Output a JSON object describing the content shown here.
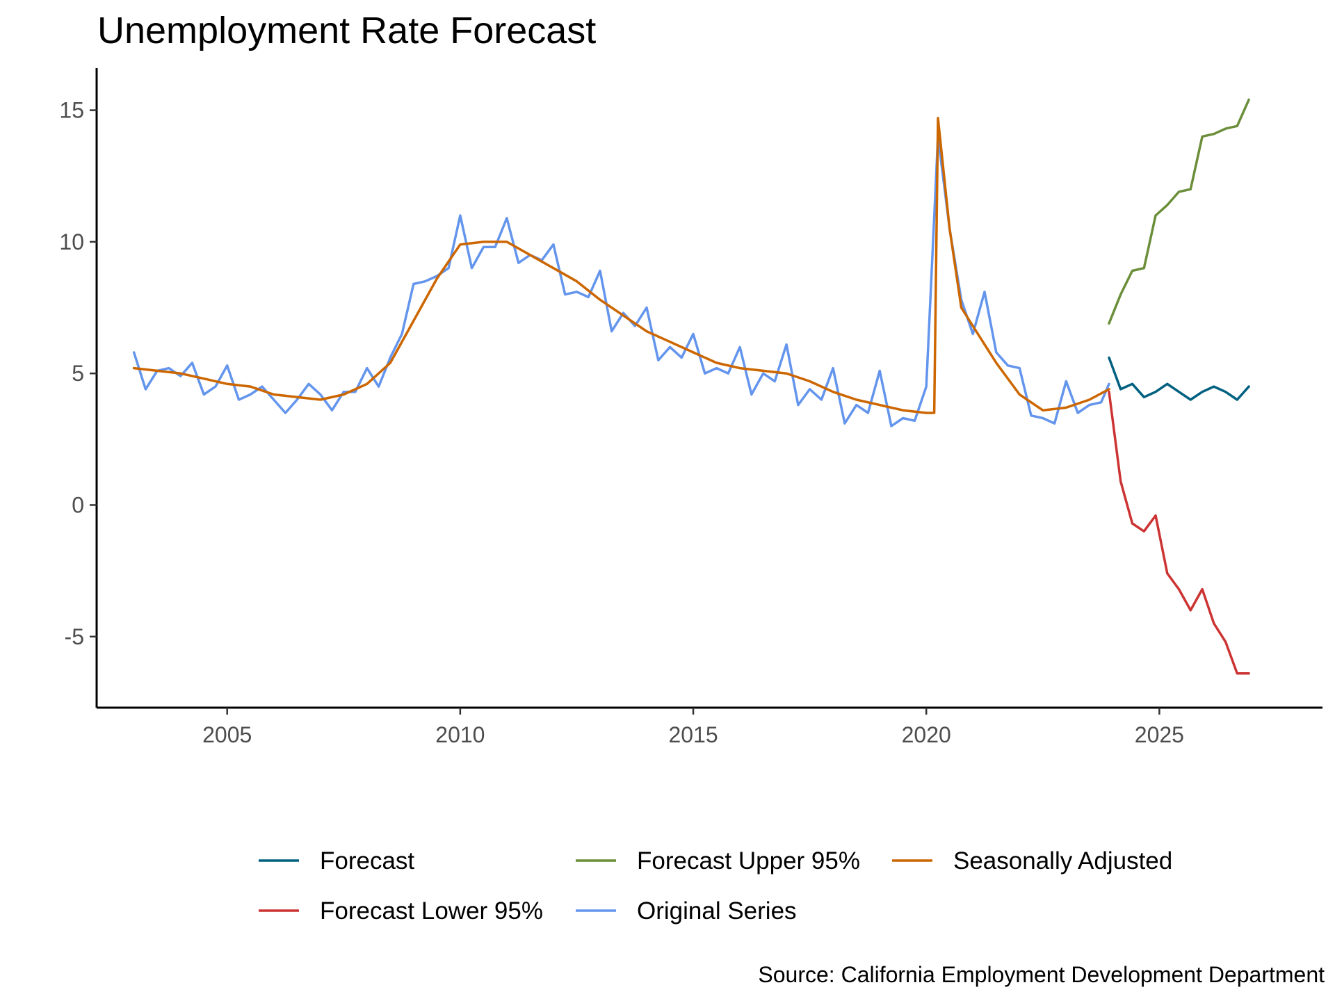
{
  "chart_data": {
    "type": "line",
    "title": "Unemployment Rate Forecast",
    "caption": "Source: California Employment Development Department",
    "xlabel": "",
    "ylabel": "",
    "xlim": [
      2002.2,
      2028.5
    ],
    "ylim": [
      -7.7,
      16.6
    ],
    "x_ticks": [
      2005,
      2010,
      2015,
      2020,
      2025
    ],
    "x_tick_labels": [
      "2005",
      "2010",
      "2015",
      "2020",
      "2025"
    ],
    "y_ticks": [
      15,
      10,
      5,
      0,
      -5
    ],
    "y_tick_labels": [
      "15",
      "10",
      "5",
      "0",
      "-5"
    ],
    "grid": false,
    "legend_position": "bottom",
    "legend": [
      "Forecast",
      "Forecast Lower 95%",
      "Forecast Upper 95%",
      "Original Series",
      "Seasonally Adjusted"
    ],
    "series": [
      {
        "name": "Original Series",
        "color": "#6495ed",
        "x": [
          2003.0,
          2003.25,
          2003.5,
          2003.75,
          2004.0,
          2004.25,
          2004.5,
          2004.75,
          2005.0,
          2005.25,
          2005.5,
          2005.75,
          2006.0,
          2006.25,
          2006.5,
          2006.75,
          2007.0,
          2007.25,
          2007.5,
          2007.75,
          2008.0,
          2008.25,
          2008.5,
          2008.75,
          2009.0,
          2009.25,
          2009.5,
          2009.75,
          2010.0,
          2010.25,
          2010.5,
          2010.75,
          2011.0,
          2011.25,
          2011.5,
          2011.75,
          2012.0,
          2012.25,
          2012.5,
          2012.75,
          2013.0,
          2013.25,
          2013.5,
          2013.75,
          2014.0,
          2014.25,
          2014.5,
          2014.75,
          2015.0,
          2015.25,
          2015.5,
          2015.75,
          2016.0,
          2016.25,
          2016.5,
          2016.75,
          2017.0,
          2017.25,
          2017.5,
          2017.75,
          2018.0,
          2018.25,
          2018.5,
          2018.75,
          2019.0,
          2019.25,
          2019.5,
          2019.75,
          2020.0,
          2020.25,
          2020.5,
          2020.75,
          2021.0,
          2021.25,
          2021.5,
          2021.75,
          2022.0,
          2022.25,
          2022.5,
          2022.75,
          2023.0,
          2023.25,
          2023.5,
          2023.75,
          2023.92
        ],
        "values": [
          5.8,
          4.4,
          5.1,
          5.2,
          4.9,
          5.4,
          4.2,
          4.5,
          5.3,
          4.0,
          4.2,
          4.5,
          4.0,
          3.5,
          4.0,
          4.6,
          4.2,
          3.6,
          4.3,
          4.3,
          5.2,
          4.5,
          5.6,
          6.5,
          8.4,
          8.5,
          8.7,
          9.0,
          11.0,
          9.0,
          9.8,
          9.8,
          10.9,
          9.2,
          9.5,
          9.3,
          9.9,
          8.0,
          8.1,
          7.9,
          8.9,
          6.6,
          7.3,
          6.8,
          7.5,
          5.5,
          6.0,
          5.6,
          6.5,
          5.0,
          5.2,
          5.0,
          6.0,
          4.2,
          5.0,
          4.7,
          6.1,
          3.8,
          4.4,
          4.0,
          5.2,
          3.1,
          3.8,
          3.5,
          5.1,
          3.0,
          3.3,
          3.2,
          4.5,
          14.0,
          10.5,
          7.8,
          6.5,
          8.1,
          5.8,
          5.3,
          5.2,
          3.4,
          3.3,
          3.1,
          4.7,
          3.5,
          3.8,
          3.9,
          4.6
        ]
      },
      {
        "name": "Seasonally Adjusted",
        "color": "#cc6600",
        "x": [
          2003.0,
          2003.5,
          2004.0,
          2004.5,
          2005.0,
          2005.5,
          2006.0,
          2006.5,
          2007.0,
          2007.5,
          2008.0,
          2008.5,
          2009.0,
          2009.5,
          2010.0,
          2010.5,
          2011.0,
          2011.5,
          2012.0,
          2012.5,
          2013.0,
          2013.5,
          2014.0,
          2014.5,
          2015.0,
          2015.5,
          2016.0,
          2016.5,
          2017.0,
          2017.5,
          2018.0,
          2018.5,
          2019.0,
          2019.5,
          2020.0,
          2020.17,
          2020.25,
          2020.5,
          2020.75,
          2021.0,
          2021.5,
          2022.0,
          2022.5,
          2023.0,
          2023.5,
          2023.92
        ],
        "values": [
          5.2,
          5.1,
          5.0,
          4.8,
          4.6,
          4.5,
          4.2,
          4.1,
          4.0,
          4.2,
          4.6,
          5.4,
          7.0,
          8.6,
          9.9,
          10.0,
          10.0,
          9.5,
          9.0,
          8.5,
          7.8,
          7.2,
          6.6,
          6.2,
          5.8,
          5.4,
          5.2,
          5.1,
          5.0,
          4.7,
          4.3,
          4.0,
          3.8,
          3.6,
          3.5,
          3.5,
          14.7,
          10.5,
          7.5,
          6.8,
          5.4,
          4.2,
          3.6,
          3.7,
          4.0,
          4.4
        ]
      },
      {
        "name": "Forecast",
        "color": "#006080",
        "x": [
          2023.92,
          2024.17,
          2024.42,
          2024.67,
          2024.92,
          2025.17,
          2025.42,
          2025.67,
          2025.92,
          2026.17,
          2026.42,
          2026.67,
          2026.92
        ],
        "values": [
          5.6,
          4.4,
          4.6,
          4.1,
          4.3,
          4.6,
          4.3,
          4.0,
          4.3,
          4.5,
          4.3,
          4.0,
          4.5
        ]
      },
      {
        "name": "Forecast Upper 95%",
        "color": "#6b8e3a",
        "x": [
          2023.92,
          2024.17,
          2024.42,
          2024.67,
          2024.92,
          2025.17,
          2025.42,
          2025.67,
          2025.92,
          2026.17,
          2026.42,
          2026.67,
          2026.92
        ],
        "values": [
          6.9,
          8.0,
          8.9,
          9.0,
          11.0,
          11.4,
          11.9,
          12.0,
          14.0,
          14.1,
          14.3,
          14.4,
          15.4
        ]
      },
      {
        "name": "Forecast Lower 95%",
        "color": "#cc3333",
        "x": [
          2023.92,
          2024.17,
          2024.42,
          2024.67,
          2024.92,
          2025.17,
          2025.42,
          2025.67,
          2025.92,
          2026.17,
          2026.42,
          2026.67,
          2026.92
        ],
        "values": [
          4.3,
          0.9,
          -0.7,
          -1.0,
          -0.4,
          -2.6,
          -3.2,
          -4.0,
          -3.2,
          -4.5,
          -5.2,
          -6.4,
          -6.4
        ]
      }
    ]
  }
}
